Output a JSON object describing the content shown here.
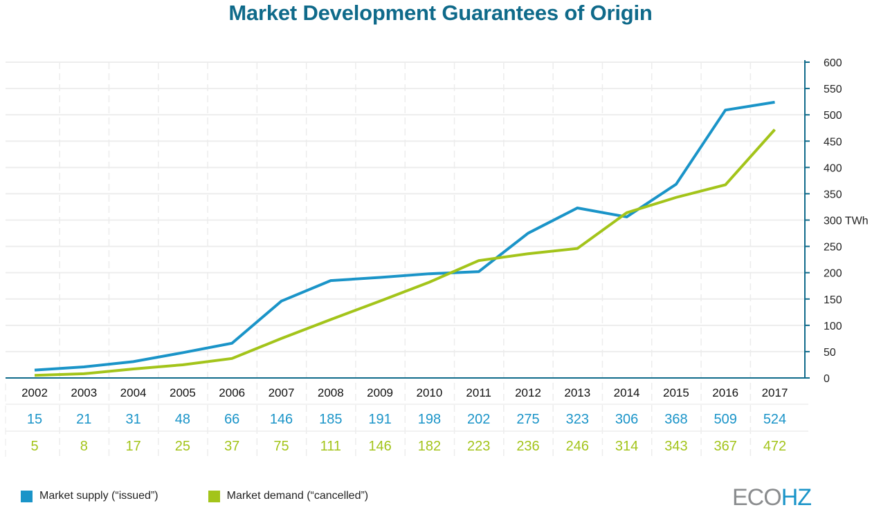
{
  "chart_data": {
    "type": "line",
    "title": "Market Development Guarantees of Origin",
    "xlabel": "",
    "ylabel": "TWh",
    "ylim": [
      0,
      600
    ],
    "yticks": [
      0,
      50,
      100,
      150,
      200,
      250,
      300,
      350,
      400,
      450,
      500,
      550,
      600
    ],
    "ytick_labels": [
      "0",
      "50",
      "100",
      "150",
      "200",
      "250",
      "300 TWh",
      "350",
      "400",
      "450",
      "500",
      "550",
      "600"
    ],
    "y_axis_side": "right",
    "grid": true,
    "categories": [
      "2002",
      "2003",
      "2004",
      "2005",
      "2006",
      "2007",
      "2008",
      "2009",
      "2010",
      "2011",
      "2012",
      "2013",
      "2014",
      "2015",
      "2016",
      "2017"
    ],
    "series": [
      {
        "name": "Market supply (“issued”)",
        "color": "#1a94c8",
        "values": [
          15,
          21,
          31,
          48,
          66,
          146,
          185,
          191,
          198,
          202,
          275,
          323,
          306,
          368,
          509,
          524
        ]
      },
      {
        "name": "Market demand (“cancelled”)",
        "color": "#a3c41a",
        "values": [
          5,
          8,
          17,
          25,
          37,
          75,
          111,
          146,
          182,
          223,
          236,
          246,
          314,
          343,
          367,
          472
        ]
      }
    ],
    "data_table": "below-chart",
    "legend_position": "bottom-left"
  },
  "colors": {
    "title": "#0f6a8a",
    "axis": "#0f6a8a",
    "grid": "#eeeeee",
    "supply": "#1a94c8",
    "demand": "#a3c41a",
    "logo_gray": "#8a8c8e",
    "logo_blue": "#1a94c8"
  },
  "logo": {
    "part1": "ECO",
    "part2": "HZ"
  }
}
